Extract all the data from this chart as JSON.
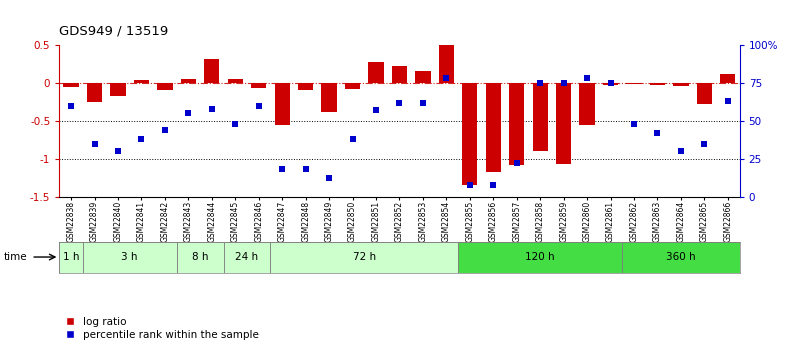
{
  "title": "GDS949 / 13519",
  "samples": [
    "GSM22838",
    "GSM22839",
    "GSM22840",
    "GSM22841",
    "GSM22842",
    "GSM22843",
    "GSM22844",
    "GSM22845",
    "GSM22846",
    "GSM22847",
    "GSM22848",
    "GSM22849",
    "GSM22850",
    "GSM22851",
    "GSM22852",
    "GSM22853",
    "GSM22854",
    "GSM22855",
    "GSM22856",
    "GSM22857",
    "GSM22858",
    "GSM22859",
    "GSM22860",
    "GSM22861",
    "GSM22862",
    "GSM22863",
    "GSM22864",
    "GSM22865",
    "GSM22866"
  ],
  "log_ratio": [
    -0.05,
    -0.25,
    -0.18,
    0.04,
    -0.1,
    0.05,
    0.31,
    0.05,
    -0.07,
    -0.55,
    -0.1,
    -0.39,
    -0.08,
    0.27,
    0.22,
    0.15,
    0.52,
    -1.35,
    -1.18,
    -1.08,
    -0.9,
    -1.07,
    -0.55,
    -0.03,
    -0.02,
    -0.03,
    -0.04,
    -0.28,
    0.12
  ],
  "percentile": [
    60,
    35,
    30,
    38,
    44,
    55,
    58,
    48,
    60,
    18,
    18,
    12,
    38,
    57,
    62,
    62,
    78,
    8,
    8,
    22,
    75,
    75,
    78,
    75,
    48,
    42,
    30,
    35,
    63
  ],
  "time_groups": [
    {
      "label": "1 h",
      "start": 0,
      "end": 1,
      "color": "#ccffcc"
    },
    {
      "label": "3 h",
      "start": 1,
      "end": 5,
      "color": "#ccffcc"
    },
    {
      "label": "8 h",
      "start": 5,
      "end": 7,
      "color": "#ccffcc"
    },
    {
      "label": "24 h",
      "start": 7,
      "end": 9,
      "color": "#ccffcc"
    },
    {
      "label": "72 h",
      "start": 9,
      "end": 17,
      "color": "#ccffcc"
    },
    {
      "label": "120 h",
      "start": 17,
      "end": 24,
      "color": "#44dd44"
    },
    {
      "label": "360 h",
      "start": 24,
      "end": 29,
      "color": "#44dd44"
    }
  ],
  "bar_color": "#cc0000",
  "dot_color": "#0000cc",
  "ylim_left": [
    -1.5,
    0.5
  ],
  "ylim_right": [
    0,
    100
  ],
  "yticks_left": [
    -1.5,
    -1.0,
    -0.5,
    0.0,
    0.5
  ],
  "ytick_labels_left": [
    "-1.5",
    "-1",
    "-0.5",
    "0",
    "0.5"
  ],
  "yticks_right": [
    0,
    25,
    50,
    75,
    100
  ],
  "ytick_labels_right": [
    "0",
    "25",
    "50",
    "75",
    "100%"
  ],
  "hlines_dotted": [
    -0.5,
    -1.0
  ],
  "hline_dashdot": 0.0,
  "background_color": "#ffffff",
  "fig_width": 7.91,
  "fig_height": 3.45,
  "dpi": 100
}
